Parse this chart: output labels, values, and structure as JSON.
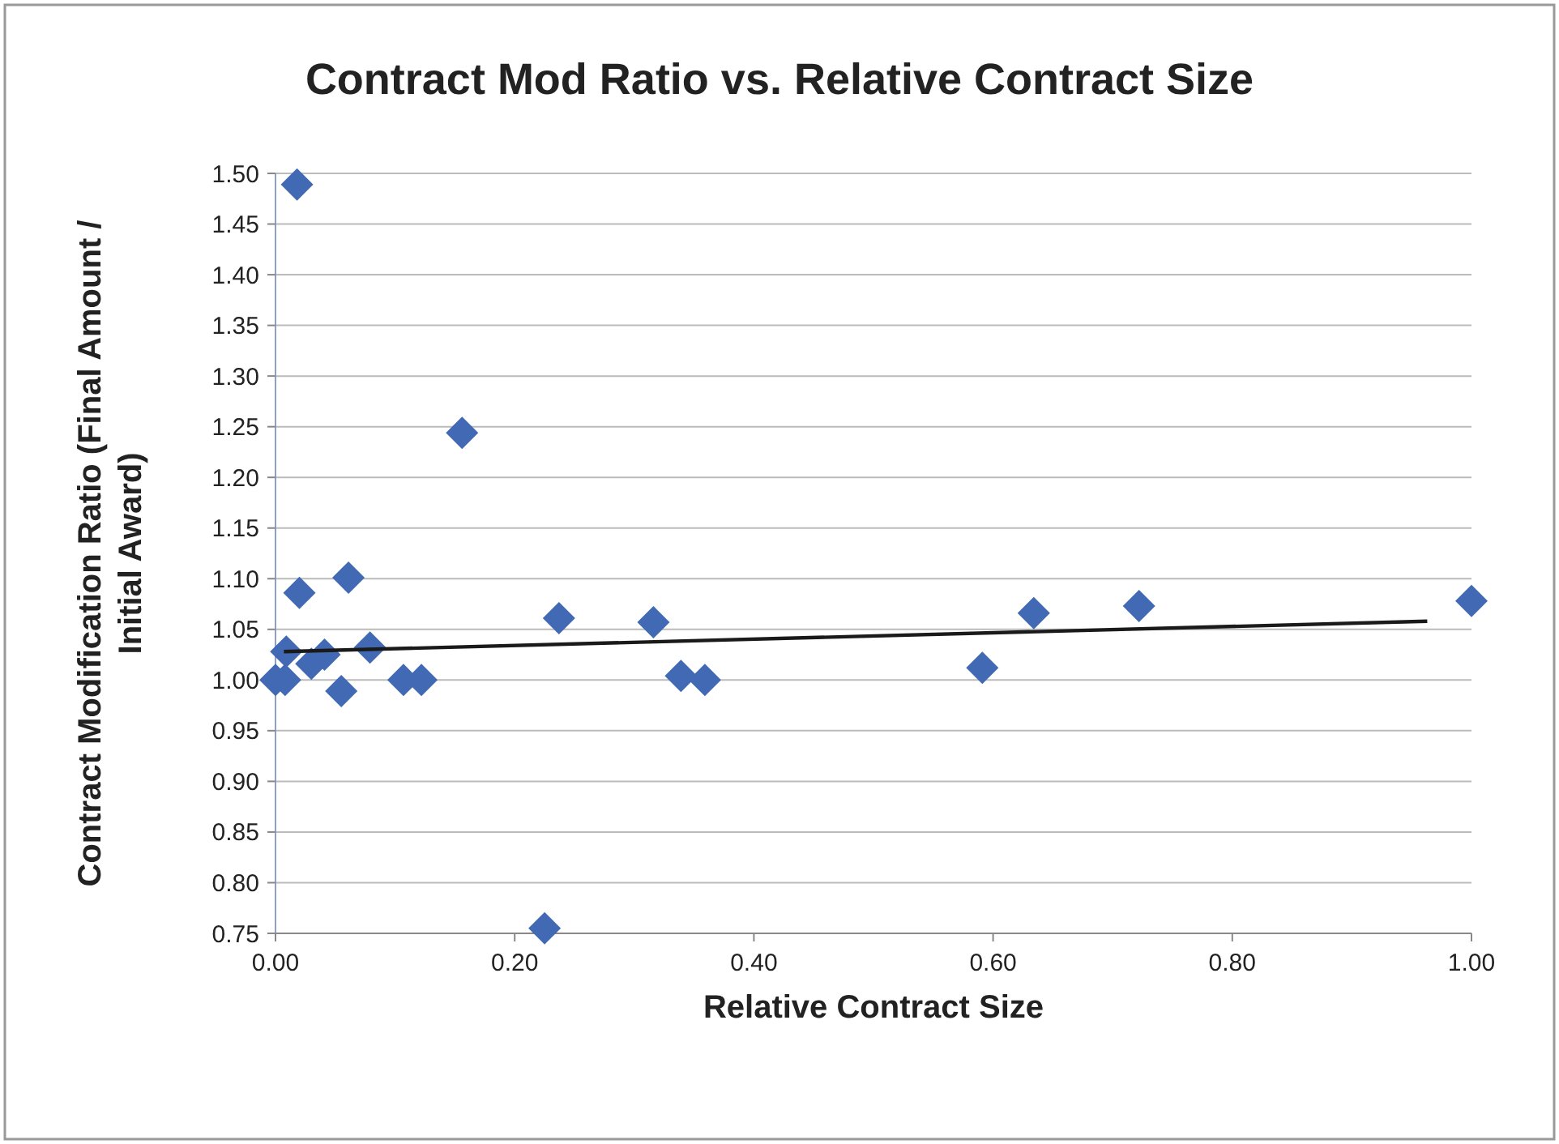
{
  "chart_data": {
    "type": "scatter",
    "title": "Contract Mod Ratio vs. Relative Contract Size",
    "xlabel": "Relative Contract Size",
    "ylabel": "Contract Modification Ratio (Final Amount / Initial Award)",
    "xlim": [
      0,
      1
    ],
    "xticks": [
      {
        "value": 0,
        "label": "0.00"
      },
      {
        "value": 0.2,
        "label": "0.20"
      },
      {
        "value": 0.4,
        "label": "0.40"
      },
      {
        "value": 0.6,
        "label": "0.60"
      },
      {
        "value": 0.8,
        "label": "0.80"
      },
      {
        "value": 1,
        "label": "1.00"
      }
    ],
    "ylim": [
      0.75,
      1.5
    ],
    "yticks": [
      {
        "value": 0.75,
        "label": "0.75"
      },
      {
        "value": 0.8,
        "label": "0.80"
      },
      {
        "value": 0.85,
        "label": "0.85"
      },
      {
        "value": 0.9,
        "label": "0.90"
      },
      {
        "value": 0.95,
        "label": "0.95"
      },
      {
        "value": 1,
        "label": "1.00"
      },
      {
        "value": 1.05,
        "label": "1.05"
      },
      {
        "value": 1.1,
        "label": "1.10"
      },
      {
        "value": 1.15,
        "label": "1.15"
      },
      {
        "value": 1.2,
        "label": "1.20"
      },
      {
        "value": 1.25,
        "label": "1.25"
      },
      {
        "value": 1.3,
        "label": "1.30"
      },
      {
        "value": 1.35,
        "label": "1.35"
      },
      {
        "value": 1.4,
        "label": "1.40"
      },
      {
        "value": 1.45,
        "label": "1.45"
      },
      {
        "value": 1.5,
        "label": "1.50"
      }
    ],
    "grid": "y",
    "marker": "diamond",
    "series": [
      {
        "color": "#4169b4",
        "x": [
          0.018,
          0.156,
          0.02,
          0.061,
          0.055,
          0.0,
          0.008,
          0.009,
          0.03,
          0.041,
          0.079,
          0.107,
          0.122,
          0.225,
          0.237,
          0.316,
          0.339,
          0.359,
          0.591,
          0.634,
          0.722,
          1.0
        ],
        "values": [
          1.489,
          1.244,
          1.086,
          1.101,
          0.989,
          1.0,
          1.0,
          1.028,
          1.016,
          1.025,
          1.032,
          1.0,
          1.0,
          0.755,
          1.061,
          1.057,
          1.004,
          1.0,
          1.012,
          1.066,
          1.073,
          1.078
        ]
      },
      {
        "type": "line",
        "color": "#1a1a1a",
        "marker": "none",
        "x": [
          0.007,
          0.963
        ],
        "values": [
          1.028,
          1.058
        ]
      }
    ]
  }
}
